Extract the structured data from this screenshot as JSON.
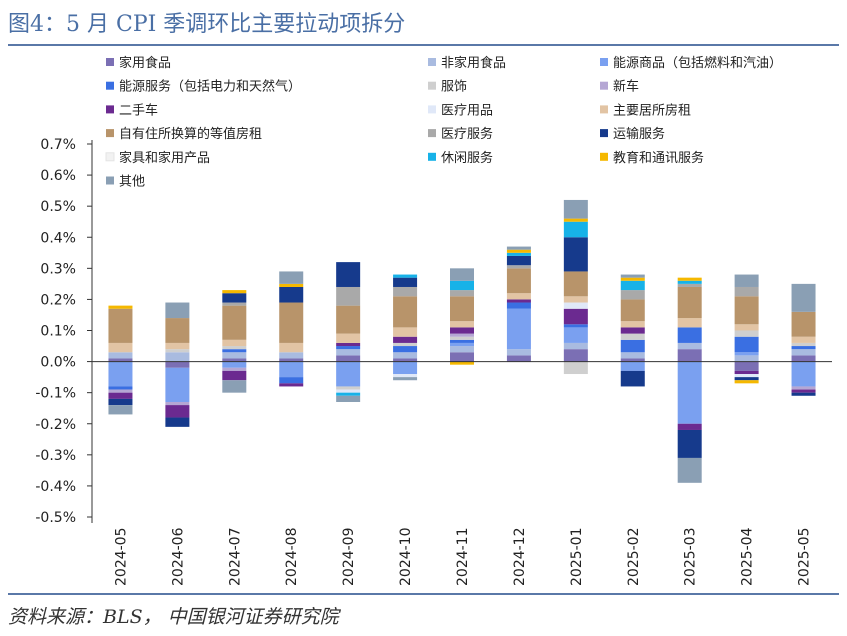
{
  "figure": {
    "title": "图4：5 月 CPI 季调环比主要拉动项拆分",
    "source": "资料来源：BLS， 中国银河证券研究院"
  },
  "chart_data": {
    "type": "bar",
    "stacked": true,
    "categories": [
      "2024-05",
      "2024-06",
      "2024-07",
      "2024-08",
      "2024-09",
      "2024-10",
      "2024-11",
      "2024-12",
      "2025-01",
      "2025-02",
      "2025-03",
      "2025-04",
      "2025-05"
    ],
    "y_ticks": [
      "0.7%",
      "0.6%",
      "0.5%",
      "0.4%",
      "0.3%",
      "0.2%",
      "0.1%",
      "0.0%",
      "-0.1%",
      "-0.2%",
      "-0.3%",
      "-0.4%",
      "-0.5%"
    ],
    "ylim": [
      -0.5,
      0.7
    ],
    "y_unit": "%",
    "legend_position": "top",
    "series": [
      {
        "name": "家用食品",
        "color": "#7b6fb4",
        "values": [
          0.01,
          -0.02,
          0.01,
          0.01,
          0.02,
          0.01,
          0.03,
          0.02,
          0.04,
          0.01,
          0.04,
          -0.03,
          0.02
        ]
      },
      {
        "name": "非家用食品",
        "color": "#a9bbe0",
        "values": [
          0.02,
          0.03,
          0.02,
          0.02,
          0.02,
          0.02,
          0.02,
          0.02,
          0.02,
          0.02,
          0.02,
          0.02,
          0.02
        ]
      },
      {
        "name": "能源商品（包括燃料和汽油）",
        "color": "#7aa0f0",
        "values": [
          -0.08,
          -0.11,
          -0.02,
          -0.05,
          -0.08,
          -0.04,
          0.01,
          0.13,
          0.05,
          -0.03,
          -0.2,
          0.01,
          -0.08
        ]
      },
      {
        "name": "能源服务（包括电力和天然气）",
        "color": "#3a6fe2",
        "values": [
          -0.01,
          0.0,
          0.01,
          -0.02,
          0.01,
          0.02,
          0.01,
          0.02,
          0.01,
          0.04,
          0.05,
          0.05,
          0.01
        ]
      },
      {
        "name": "服饰",
        "color": "#cfcfcf",
        "values": [
          0.0,
          0.01,
          0.01,
          0.0,
          -0.01,
          0.01,
          0.01,
          0.0,
          -0.04,
          0.02,
          0.0,
          0.02,
          0.01
        ]
      },
      {
        "name": "新车",
        "color": "#b5a7d4",
        "values": [
          -0.01,
          -0.01,
          -0.01,
          0.0,
          0.0,
          0.0,
          0.01,
          0.0,
          0.0,
          0.0,
          0.0,
          0.0,
          -0.01
        ]
      },
      {
        "name": "二手车",
        "color": "#6b2a90",
        "values": [
          -0.02,
          -0.04,
          -0.03,
          -0.01,
          0.01,
          0.02,
          0.02,
          0.01,
          0.05,
          0.02,
          -0.02,
          -0.01,
          -0.01
        ]
      },
      {
        "name": "医疗用品",
        "color": "#e0e8f8",
        "values": [
          0.0,
          0.0,
          0.0,
          0.0,
          -0.01,
          -0.01,
          0.0,
          0.0,
          0.02,
          0.0,
          0.0,
          -0.01,
          0.0
        ]
      },
      {
        "name": "主要居所房租",
        "color": "#e2c4a4",
        "values": [
          0.03,
          0.02,
          0.02,
          0.03,
          0.03,
          0.03,
          0.02,
          0.02,
          0.02,
          0.02,
          0.03,
          0.02,
          0.02
        ]
      },
      {
        "name": "自有住所换算的等值房租",
        "color": "#b8946a",
        "values": [
          0.11,
          0.08,
          0.11,
          0.13,
          0.09,
          0.1,
          0.08,
          0.08,
          0.08,
          0.07,
          0.1,
          0.09,
          0.08
        ]
      },
      {
        "name": "医疗服务",
        "color": "#a9a9a9",
        "values": [
          0.0,
          0.0,
          0.01,
          0.0,
          0.06,
          0.03,
          0.02,
          0.01,
          0.0,
          0.03,
          0.01,
          0.03,
          0.0
        ]
      },
      {
        "name": "运输服务",
        "color": "#163a8c",
        "values": [
          -0.02,
          -0.03,
          0.03,
          0.05,
          0.08,
          0.03,
          0.0,
          0.03,
          0.11,
          -0.05,
          -0.09,
          -0.01,
          -0.01
        ]
      },
      {
        "name": "家具和家用产品",
        "color": "#f2f2f2",
        "values": [
          0.0,
          0.0,
          0.0,
          0.0,
          0.0,
          0.0,
          0.0,
          0.0,
          0.0,
          0.0,
          0.0,
          0.0,
          0.0
        ]
      },
      {
        "name": "休闲服务",
        "color": "#17b2e8",
        "values": [
          0.0,
          0.0,
          0.0,
          0.0,
          -0.01,
          0.01,
          0.03,
          0.01,
          0.05,
          0.03,
          0.01,
          0.0,
          0.0
        ]
      },
      {
        "name": "教育和通讯服务",
        "color": "#f5b800",
        "values": [
          0.01,
          0.0,
          0.01,
          0.01,
          0.0,
          0.0,
          -0.01,
          0.01,
          0.01,
          0.01,
          0.01,
          -0.01,
          0.0
        ]
      },
      {
        "name": "其他",
        "color": "#8a9fb4",
        "values": [
          -0.03,
          0.05,
          -0.04,
          0.04,
          -0.02,
          -0.01,
          0.04,
          0.01,
          0.06,
          0.01,
          -0.08,
          0.04,
          0.09
        ]
      }
    ]
  }
}
